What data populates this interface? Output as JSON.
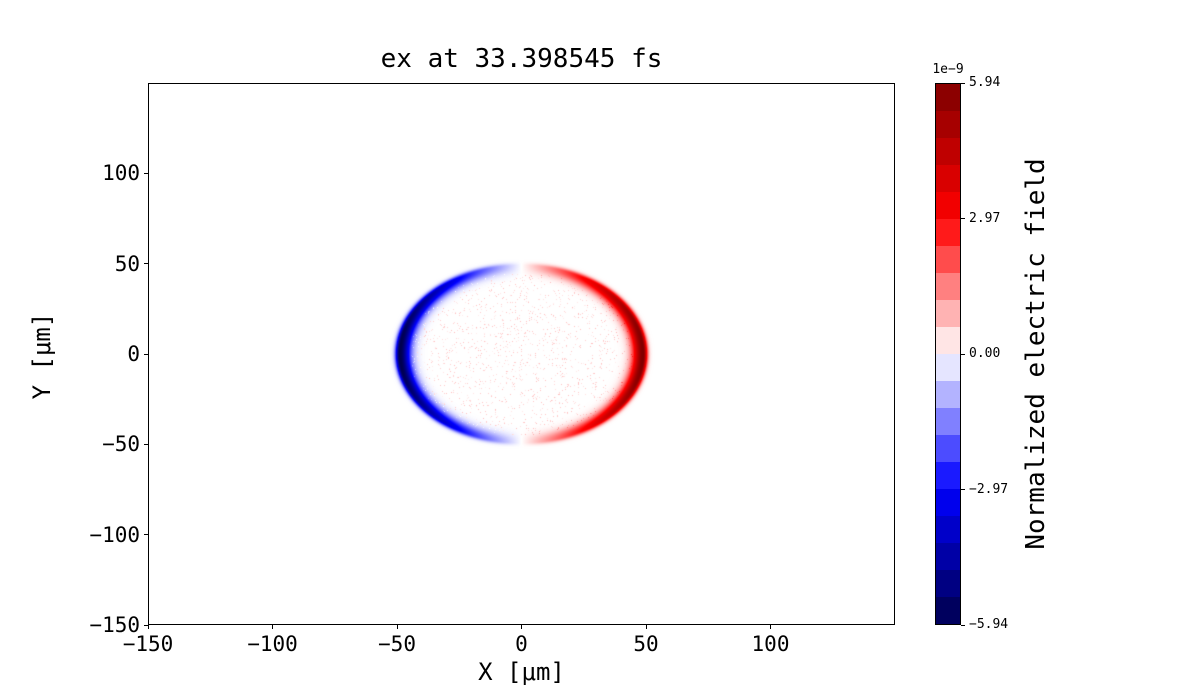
{
  "title": "ex at 33.398545 fs",
  "axes": {
    "xlabel": "X [μm]",
    "ylabel": "Y [μm]",
    "x_tick_labels": [
      "−150",
      "−100",
      "−50",
      "0",
      "50",
      "100"
    ],
    "y_tick_labels": [
      "100",
      "50",
      "0",
      "−50",
      "−100",
      "−150"
    ]
  },
  "colorbar": {
    "label": "Normalized electric field",
    "offset_label": "1e−9",
    "tick_labels": [
      "5.94",
      "2.97",
      "0.00",
      "−2.97",
      "−5.94"
    ],
    "levels": 20,
    "colormap": "seismic"
  },
  "colors": {
    "background": "#ffffff",
    "axis": "#000000",
    "positive_max": "#7f0000",
    "positive": "#ff0000",
    "zero": "#ffffff",
    "negative": "#0000ff",
    "negative_min": "#00004d"
  },
  "chart_data": {
    "type": "heatmap",
    "title": "ex at 33.398545 fs",
    "field": "ex",
    "time_fs": 33.398545,
    "xlabel": "X [μm]",
    "ylabel": "Y [μm]",
    "colorbar_label": "Normalized electric field",
    "colormap": "seismic",
    "xlim": [
      -150,
      150
    ],
    "ylim": [
      -150,
      150
    ],
    "x_ticks": [
      -150,
      -100,
      -50,
      0,
      50,
      100
    ],
    "y_ticks": [
      100,
      50,
      0,
      -50,
      -100,
      -150
    ],
    "colorbar_ticks": [
      5.94,
      2.97,
      0.0,
      -2.97,
      -5.94
    ],
    "value_scale": "1e−9",
    "vmin": -5.94e-09,
    "vmax": 5.94e-09,
    "ring": {
      "radius_um": 50,
      "width_um_inner": 4.2,
      "width_um_outer": 1.7,
      "angular_dependence": "cos(theta)",
      "positive_lobe": "right (+x) half, red",
      "negative_lobe": "left (−x) half, blue"
    },
    "interior_noise": "sparse faint positive (pink) speckle inside the ring",
    "description": "2D map of normalized electric field ex at t = 33.398545 fs: a thin circular shell of radius ≈50 μm centered at the origin; amplitude ∝ cos(θ), red (positive, up to ≈5.94e−9) on the right half, blue (negative, down to ≈−5.94e−9) on the left half, vanishing at top and bottom of the ring; faint pink noise fills the disk interior; background field is zero (white)."
  }
}
